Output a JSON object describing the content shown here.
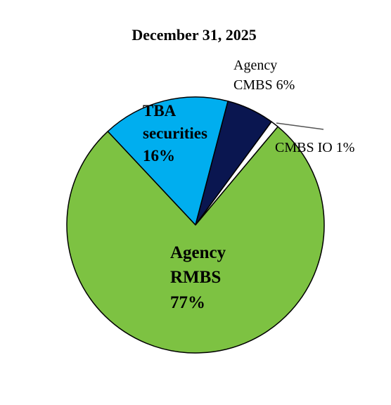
{
  "chart_data": {
    "type": "pie",
    "title": "December 31, 2025",
    "slices": [
      {
        "name": "Agency RMBS",
        "value": 77,
        "label_lines": [
          "Agency",
          "RMBS",
          "77%"
        ],
        "color": "#7DC242"
      },
      {
        "name": "TBA securities",
        "value": 16,
        "label_lines": [
          "TBA",
          "securities",
          "16%"
        ],
        "color": "#00AEEF"
      },
      {
        "name": "Agency CMBS",
        "value": 6,
        "label_lines": [
          "Agency",
          "CMBS 6%"
        ],
        "color": "#0A1650"
      },
      {
        "name": "CMBS IO",
        "value": 1,
        "label_lines": [
          "CMBS IO 1%"
        ],
        "color": "#FFFFFF"
      }
    ],
    "legend": "none"
  }
}
